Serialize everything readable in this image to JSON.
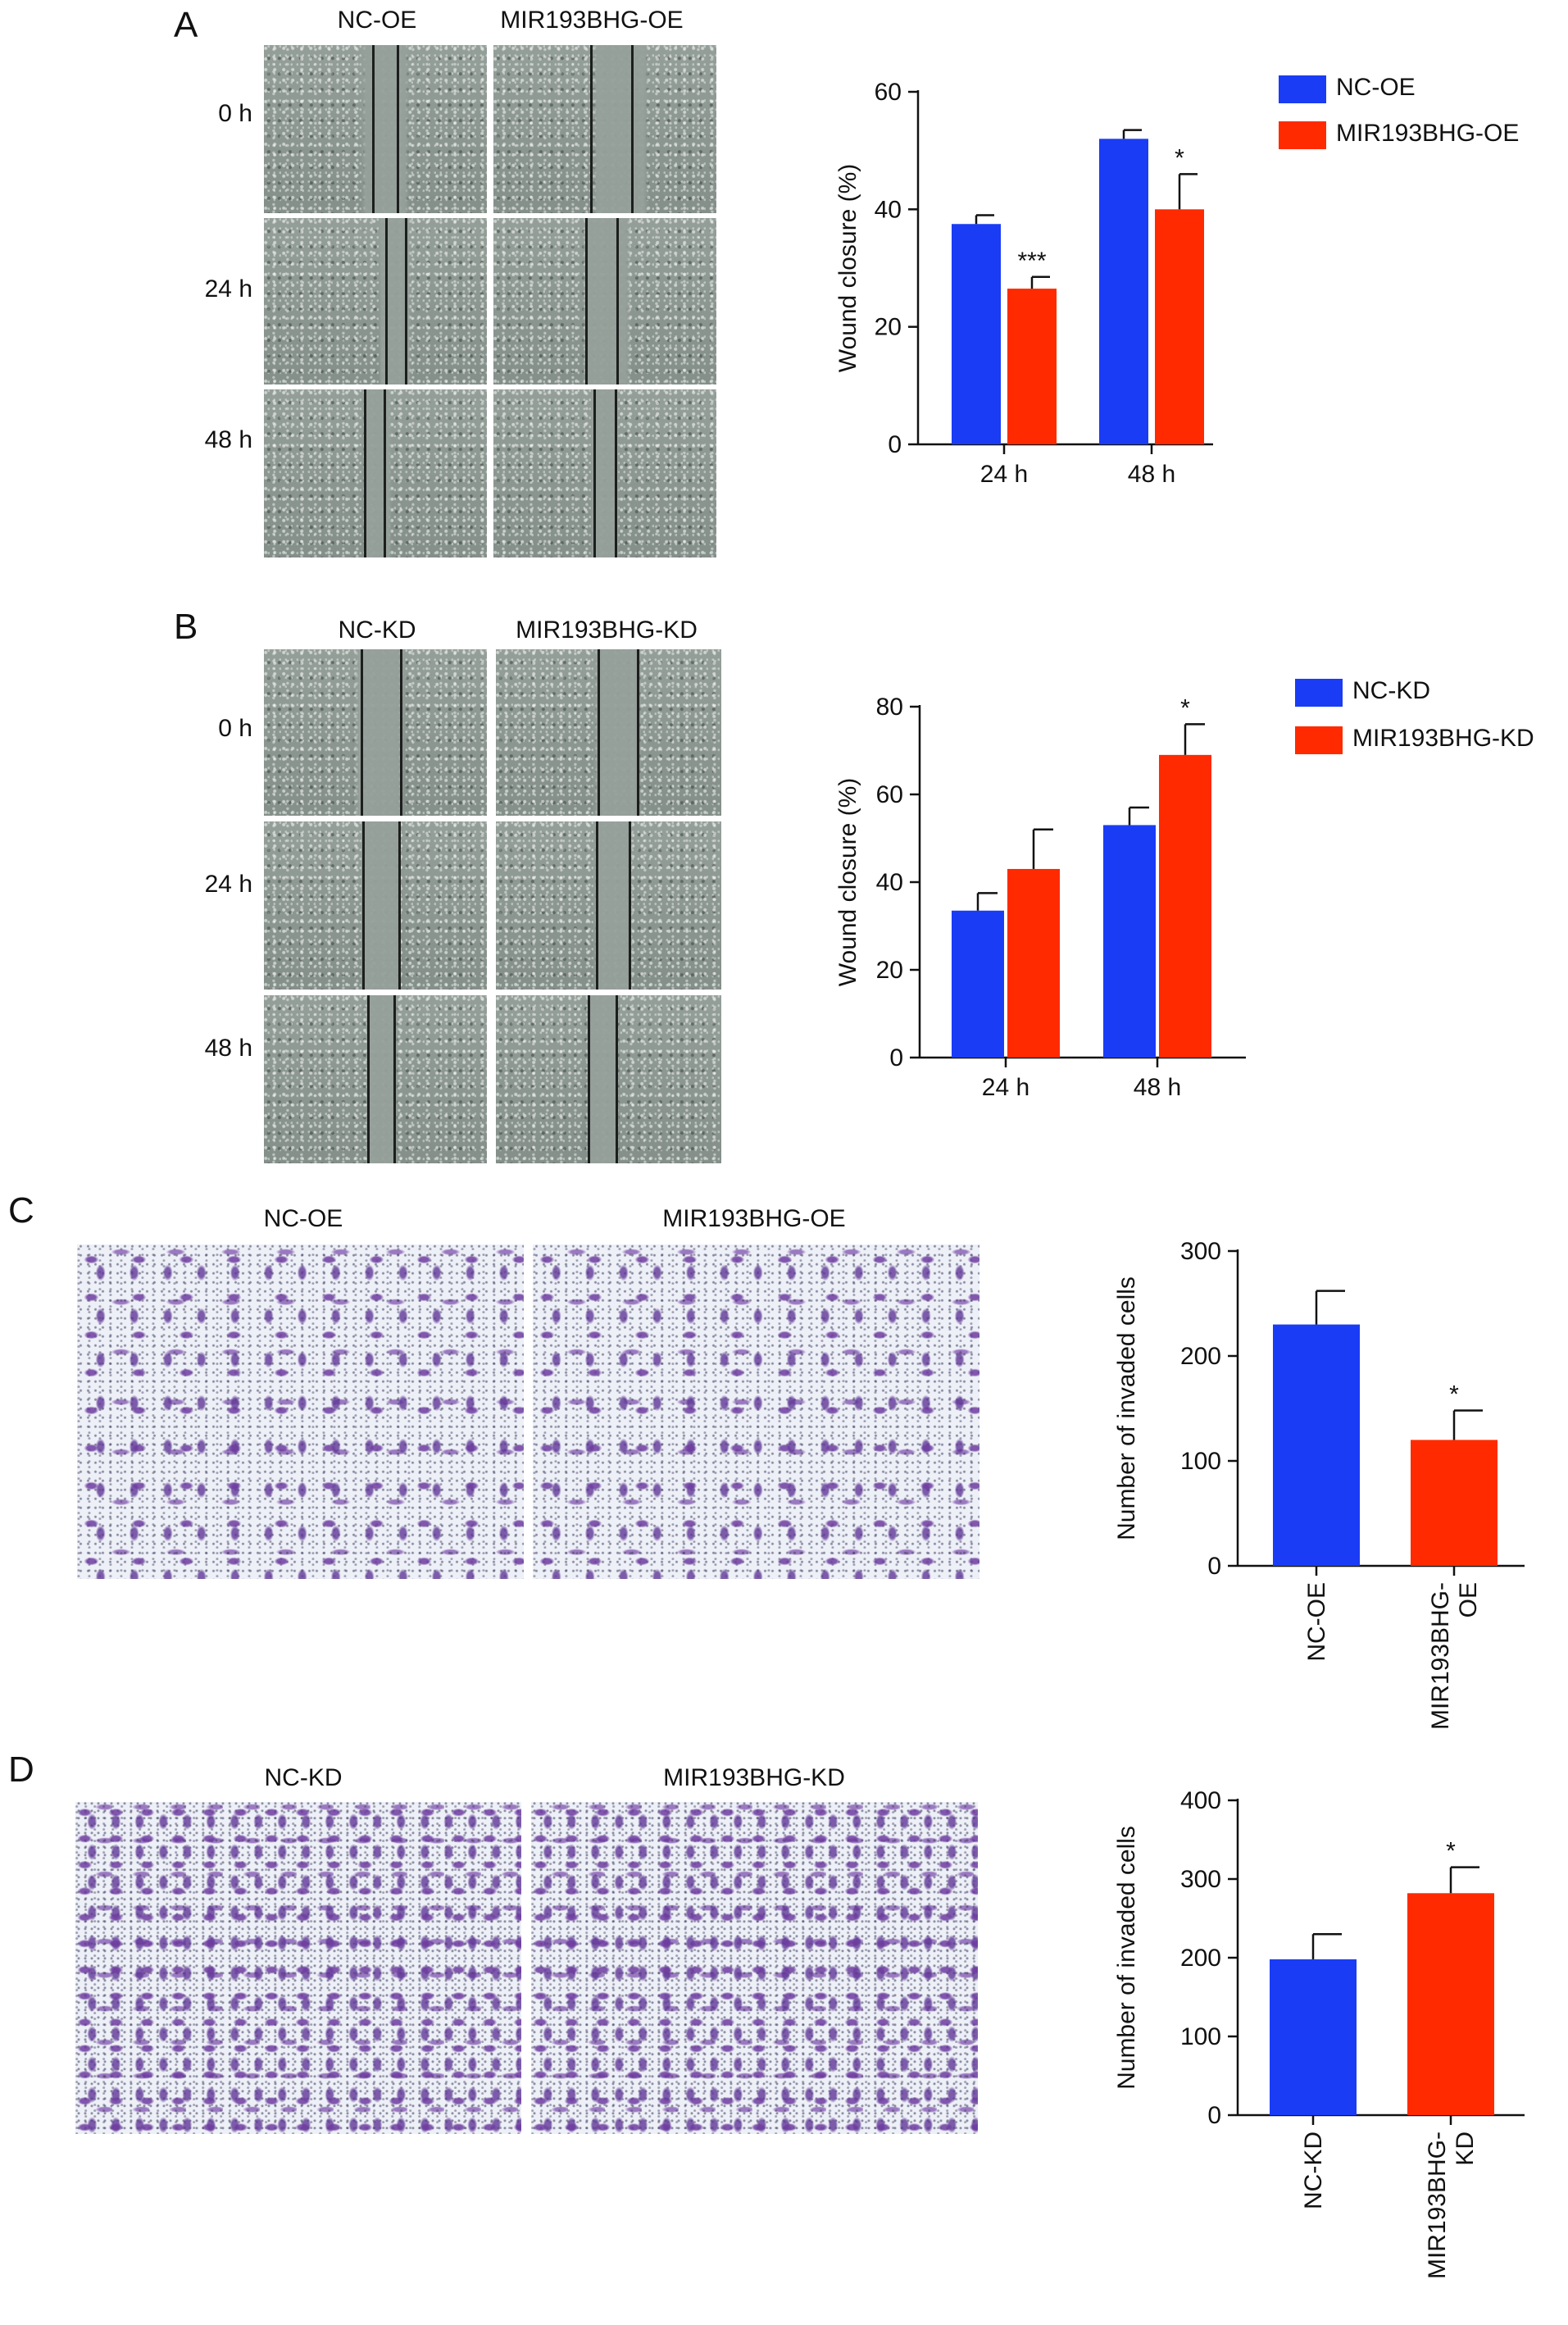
{
  "panels": {
    "A": {
      "letter": "A",
      "columns": [
        "NC-OE",
        "MIR193BHG-OE"
      ],
      "rows": [
        "0 h",
        "24 h",
        "48 h"
      ]
    },
    "B": {
      "letter": "B",
      "columns": [
        "NC-KD",
        "MIR193BHG-KD"
      ],
      "rows": [
        "0 h",
        "24 h",
        "48 h"
      ]
    },
    "C": {
      "letter": "C",
      "columns": [
        "NC-OE",
        "MIR193BHG-OE"
      ]
    },
    "D": {
      "letter": "D",
      "columns": [
        "NC-KD",
        "MIR193BHG-KD"
      ]
    }
  },
  "colors": {
    "blue": "#1a3cf5",
    "red": "#ff2a00"
  },
  "chart_data": [
    {
      "id": "A",
      "type": "bar",
      "categories": [
        "24 h",
        "48 h"
      ],
      "series": [
        {
          "name": "NC-OE",
          "values": [
            37.5,
            52
          ],
          "errors": [
            1.5,
            1.5
          ],
          "color": "#1a3cf5"
        },
        {
          "name": "MIR193BHG-OE",
          "values": [
            26.5,
            40
          ],
          "errors": [
            2,
            6
          ],
          "color": "#ff2a00"
        }
      ],
      "significance": [
        [
          "",
          "***"
        ],
        [
          "",
          "*"
        ]
      ],
      "ylabel": "Wound closure (%)",
      "ylim": [
        0,
        60
      ],
      "yticks": [
        0,
        20,
        40,
        60
      ],
      "legend": "top-right"
    },
    {
      "id": "B",
      "type": "bar",
      "categories": [
        "24 h",
        "48 h"
      ],
      "series": [
        {
          "name": "NC-KD",
          "values": [
            33.5,
            53
          ],
          "errors": [
            4,
            4
          ],
          "color": "#1a3cf5"
        },
        {
          "name": "MIR193BHG-KD",
          "values": [
            43,
            69
          ],
          "errors": [
            9,
            7
          ],
          "color": "#ff2a00"
        }
      ],
      "significance": [
        [
          "",
          ""
        ],
        [
          "",
          "*"
        ]
      ],
      "ylabel": "Wound closure (%)",
      "ylim": [
        0,
        80
      ],
      "yticks": [
        0,
        20,
        40,
        60,
        80
      ],
      "legend": "top-right"
    },
    {
      "id": "C",
      "type": "bar",
      "categories": [
        "NC-OE",
        "MIR193BHG-OE"
      ],
      "category_lines": [
        [
          "NC-OE"
        ],
        [
          "MIR193BHG-",
          "OE"
        ]
      ],
      "values": [
        230,
        120
      ],
      "errors": [
        32,
        28
      ],
      "colors": [
        "#1a3cf5",
        "#ff2a00"
      ],
      "significance": [
        "",
        "*"
      ],
      "ylabel": "Number of invaded cells",
      "ylim": [
        0,
        300
      ],
      "yticks": [
        0,
        100,
        200,
        300
      ]
    },
    {
      "id": "D",
      "type": "bar",
      "categories": [
        "NC-KD",
        "MIR193BHG-KD"
      ],
      "category_lines": [
        [
          "NC-KD"
        ],
        [
          "MIR193BHG-",
          "KD"
        ]
      ],
      "values": [
        198,
        282
      ],
      "errors": [
        32,
        33
      ],
      "colors": [
        "#1a3cf5",
        "#ff2a00"
      ],
      "significance": [
        "",
        "*"
      ],
      "ylabel": "Number of invaded cells",
      "ylim": [
        0,
        400
      ],
      "yticks": [
        0,
        100,
        200,
        300,
        400
      ]
    }
  ]
}
